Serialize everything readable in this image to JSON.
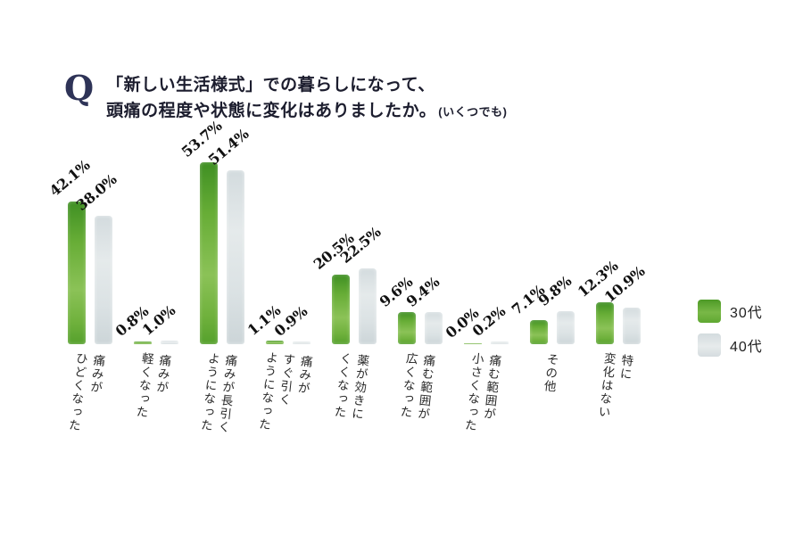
{
  "title": {
    "q": "Q",
    "line1": "「新しい生活様式」での暮らしになって、",
    "line2": "頭痛の程度や状態に変化はありましたか。",
    "suffix": "(いくつでも)"
  },
  "legend": [
    {
      "label": "30代",
      "color": "#5aa42e"
    },
    {
      "label": "40代",
      "color": "#dde3e5"
    }
  ],
  "chart_data": {
    "type": "bar",
    "title": "「新しい生活様式」での暮らしになって、頭痛の程度や状態に変化はありましたか。(いくつでも)",
    "unit": "%",
    "ylim": [
      0,
      60
    ],
    "grid": false,
    "legend_position": "right",
    "categories": [
      [
        "痛みが",
        "ひどくなった"
      ],
      [
        "痛みが",
        "軽くなった"
      ],
      [
        "痛みが長引く",
        "ようになった"
      ],
      [
        "痛みが",
        "すぐ引く",
        "ようになった"
      ],
      [
        "薬が効きに",
        "くくなった"
      ],
      [
        "痛む範囲が",
        "広くなった"
      ],
      [
        "痛む範囲が",
        "小さくなった"
      ],
      [
        "その他"
      ],
      [
        "特に",
        "変化はない"
      ]
    ],
    "series": [
      {
        "name": "30代",
        "color": "#5aa42e",
        "values": [
          42.1,
          0.8,
          53.7,
          1.1,
          20.5,
          9.6,
          0.0,
          7.1,
          12.3
        ]
      },
      {
        "name": "40代",
        "color": "#dde3e5",
        "values": [
          38.0,
          1.0,
          51.4,
          0.9,
          22.5,
          9.4,
          0.2,
          9.8,
          10.9
        ]
      }
    ]
  }
}
